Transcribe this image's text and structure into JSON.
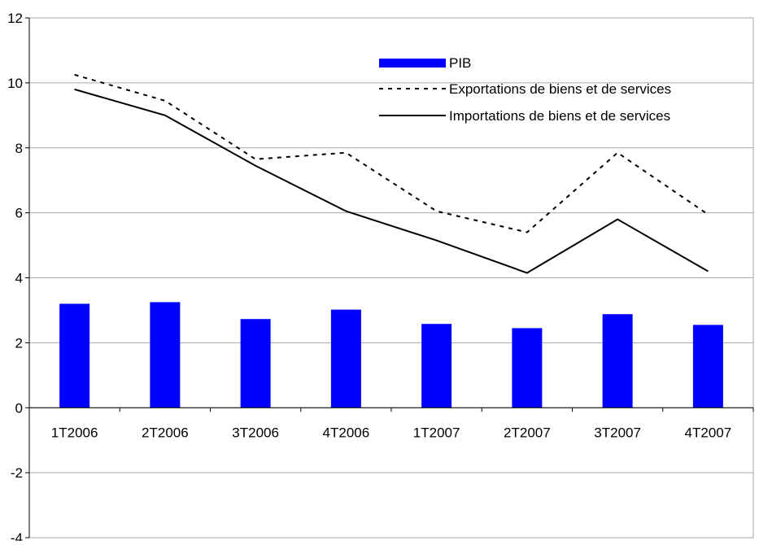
{
  "chart_data": {
    "type": "bar",
    "title": "",
    "xlabel": "",
    "ylabel": "",
    "categories": [
      "1T2006",
      "2T2006",
      "3T2006",
      "4T2006",
      "1T2007",
      "2T2007",
      "3T2007",
      "4T2007"
    ],
    "ylim": [
      -4,
      12
    ],
    "yticks": [
      -4,
      -2,
      0,
      2,
      4,
      6,
      8,
      10,
      12
    ],
    "grid": true,
    "legend_position": "top-right",
    "series": [
      {
        "name": "PIB",
        "kind": "bar",
        "color": "#0000ff",
        "values": [
          3.2,
          3.25,
          2.73,
          3.02,
          2.58,
          2.45,
          2.88,
          2.55
        ]
      },
      {
        "name": "Exportations de biens et de services",
        "kind": "line",
        "style": "dotted",
        "color": "#000000",
        "values": [
          10.25,
          9.45,
          7.65,
          7.85,
          6.05,
          5.4,
          7.85,
          5.95
        ]
      },
      {
        "name": "Importations de biens et de services",
        "kind": "line",
        "style": "solid",
        "color": "#000000",
        "values": [
          9.8,
          9.0,
          7.45,
          6.05,
          5.15,
          4.15,
          5.8,
          4.2
        ]
      }
    ]
  }
}
